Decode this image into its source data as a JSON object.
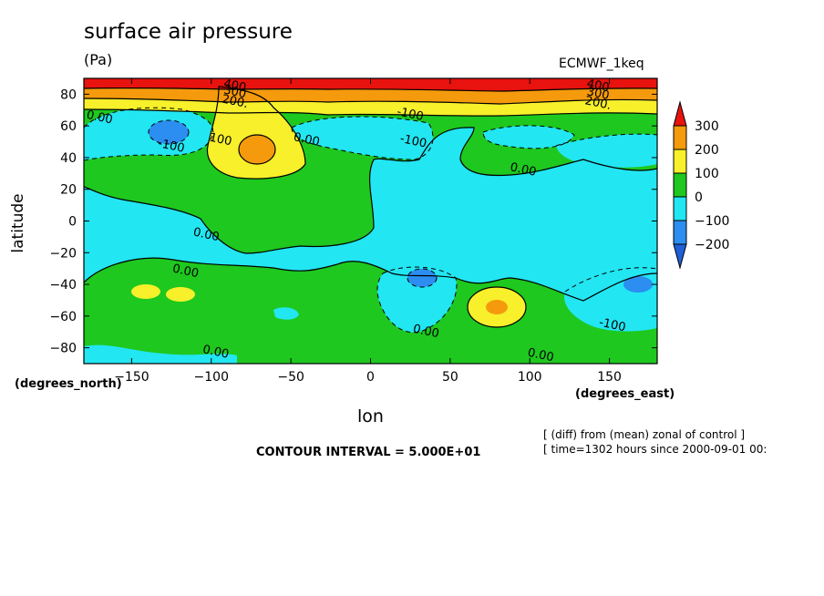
{
  "chart_data": {
    "type": "heatmap",
    "title": "surface air pressure",
    "units": "(Pa)",
    "dataset": "ECMWF_1keq",
    "xlabel": "lon",
    "ylabel": "latitude",
    "x_unit_label": "(degrees_east)",
    "y_unit_label": "(degrees_north)",
    "xlim": [
      -180,
      180
    ],
    "ylim": [
      -90,
      90
    ],
    "x_ticks": [
      -150,
      -100,
      -50,
      0,
      50,
      100,
      150
    ],
    "y_ticks": [
      80,
      60,
      40,
      20,
      0,
      -20,
      -40,
      -60,
      -80
    ],
    "x_tick_labels": [
      "−150",
      "−100",
      "−50",
      "0",
      "50",
      "100",
      "150"
    ],
    "y_tick_labels": [
      "80",
      "60",
      "40",
      "20",
      "0",
      "−20",
      "−40",
      "−60",
      "−80"
    ],
    "colorbar": {
      "levels": [
        300,
        200,
        100,
        0,
        -100,
        -200
      ],
      "labels": [
        "300",
        "200",
        "100",
        "0",
        "−100",
        "−200"
      ],
      "colors": [
        "#e8120e",
        "#f59a0c",
        "#f7f02a",
        "#1ec81e",
        "#22e6f2",
        "#2b8ef0",
        "#1f5fd8"
      ]
    },
    "contour_interval": "CONTOUR INTERVAL = 5.000E+01",
    "contour_labels": [
      {
        "text": "400",
        "x": -85,
        "y": 86
      },
      {
        "text": "300",
        "x": -85,
        "y": 82
      },
      {
        "text": "200.",
        "x": -85,
        "y": 76
      },
      {
        "text": "400",
        "x": 143,
        "y": 86
      },
      {
        "text": "300",
        "x": 143,
        "y": 81
      },
      {
        "text": "200.",
        "x": 143,
        "y": 75
      },
      {
        "text": "0.00",
        "x": -170,
        "y": 66
      },
      {
        "text": "-100",
        "x": -125,
        "y": 48
      },
      {
        "text": "100",
        "x": -94,
        "y": 52
      },
      {
        "text": "-100",
        "x": 25,
        "y": 68
      },
      {
        "text": "0.00",
        "x": -40,
        "y": 52
      },
      {
        "text": "-100",
        "x": 27,
        "y": 51
      },
      {
        "text": "0.00",
        "x": 96,
        "y": 33
      },
      {
        "text": "0.00",
        "x": -103,
        "y": -8
      },
      {
        "text": "0.00",
        "x": -116,
        "y": -31
      },
      {
        "text": "0.00",
        "x": -97,
        "y": -82
      },
      {
        "text": "0.00",
        "x": 35,
        "y": -69
      },
      {
        "text": "0.00",
        "x": 107,
        "y": -84
      },
      {
        "text": "-100",
        "x": 152,
        "y": -65
      }
    ],
    "features": [
      {
        "name": "north-polar-high",
        "lat": 85,
        "lon": 0,
        "value": 400
      },
      {
        "name": "low-north-pacific",
        "lat": 57,
        "lon": -130,
        "value": -200
      },
      {
        "name": "high-north-america",
        "lat": 45,
        "lon": -75,
        "value": 200
      },
      {
        "name": "low-north-atlantic",
        "lat": 55,
        "lon": 20,
        "value": -100
      },
      {
        "name": "high-south-pacific-1",
        "lat": -45,
        "lon": -145,
        "value": 100
      },
      {
        "name": "high-south-pacific-2",
        "lat": -45,
        "lon": -120,
        "value": 100
      },
      {
        "name": "low-south-atlantic",
        "lat": -37,
        "lon": 33,
        "value": -200
      },
      {
        "name": "high-south-indian",
        "lat": -55,
        "lon": 77,
        "value": 200
      },
      {
        "name": "low-south-pacific-east",
        "lat": -45,
        "lon": 165,
        "value": -200
      }
    ]
  },
  "notes": {
    "line1": "[ (diff) from (mean) zonal of control ]",
    "line2": "[ time=1302 hours since 2000-09-01 00:"
  }
}
